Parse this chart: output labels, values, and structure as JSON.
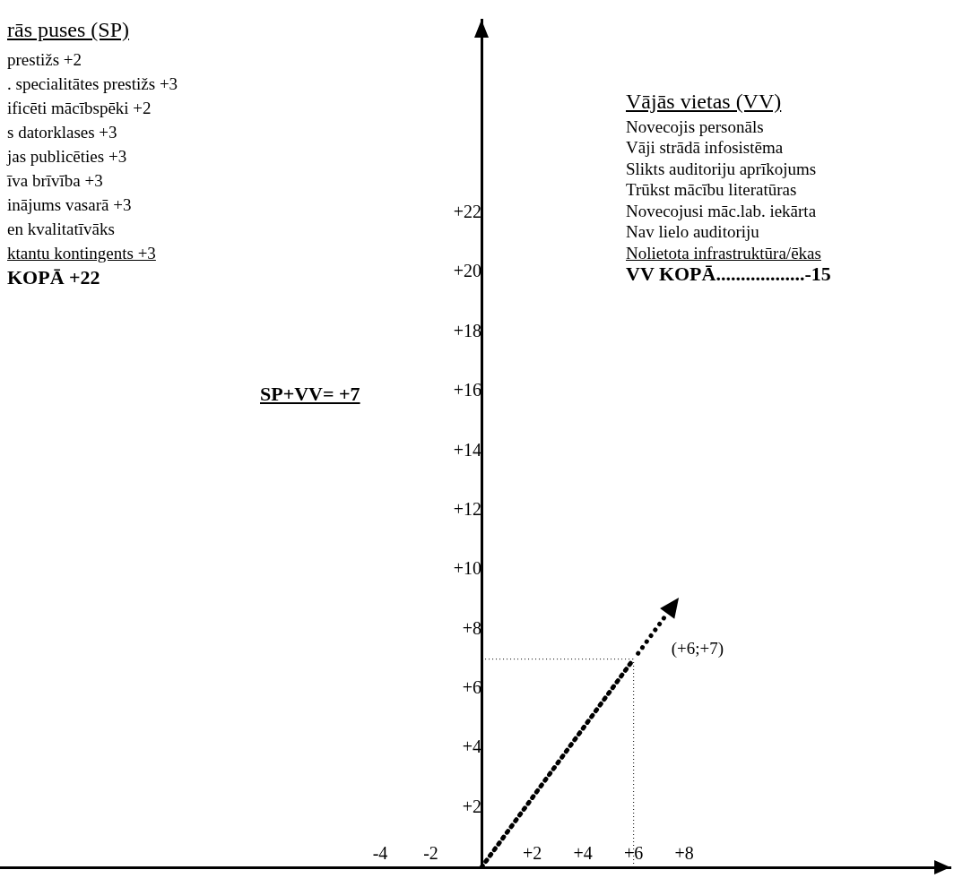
{
  "chart_data": {
    "type": "line",
    "x": [
      0,
      6
    ],
    "series": [
      {
        "color": "#000000",
        "values": [
          0,
          7
        ]
      }
    ],
    "marker": "none",
    "line_style": "dotted",
    "grid": false,
    "legend": false,
    "xlim": [
      -19,
      18.5
    ],
    "ylim": [
      0,
      28.5
    ],
    "xticks": [
      {
        "value": -4,
        "label": "-4"
      },
      {
        "value": -2,
        "label": "-2"
      },
      {
        "value": 2,
        "label": "+2"
      },
      {
        "value": 4,
        "label": "+4"
      },
      {
        "value": 6,
        "label": "+6"
      },
      {
        "value": 8,
        "label": "+8"
      }
    ],
    "yticks": [
      {
        "value": 2,
        "label": "+2"
      },
      {
        "value": 4,
        "label": "+4"
      },
      {
        "value": 6,
        "label": "+6"
      },
      {
        "value": 8,
        "label": "+8"
      },
      {
        "value": 10,
        "label": "+10"
      },
      {
        "value": 12,
        "label": "+12"
      },
      {
        "value": 14,
        "label": "+14"
      },
      {
        "value": 16,
        "label": "+16"
      },
      {
        "value": 18,
        "label": "+18"
      },
      {
        "value": 20,
        "label": "+20"
      },
      {
        "value": 22,
        "label": "+22"
      }
    ],
    "ref_lines": [
      {
        "axis": "x",
        "value": 6,
        "color": "#000000",
        "line_style": "dotted"
      },
      {
        "axis": "y",
        "value": 7,
        "color": "#000000",
        "line_style": "dotted"
      }
    ],
    "annotations": [
      "rās puses (SP)",
      "prestižs +2",
      ". specialitātes prestižs +3",
      "ificēti mācībspēki +2",
      "s datorklases +3",
      "jas publicēties +3",
      "īva brīvība +3",
      "inājums vasarā +3",
      "en kvalitatīvāks",
      "ktantu kontingents +3",
      "KOPĀ +22",
      "SP+VV= +7",
      "Vājās vietas (VV)",
      "Novecojis personāls",
      "Vāji strādā infosistēma",
      "Slikts auditoriju aprīkojums",
      "Trūkst mācību literatūras",
      "Novecojusi māc.lab. iekārta",
      "Nav lielo auditoriju",
      "Nolietota infrastruktūra/ēkas",
      "VV KOPĀ..................-15",
      {
        "text": "(+6;+7)",
        "x": 6,
        "y": 7
      }
    ]
  }
}
